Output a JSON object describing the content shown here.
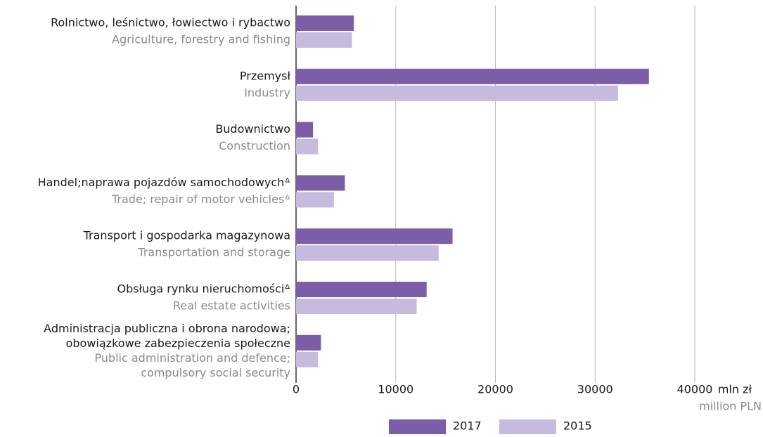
{
  "chart_data": {
    "type": "hbar",
    "categories": [
      {
        "pl": [
          "Rolnictwo, leśnictwo, łowiectwo i rybactwo"
        ],
        "en": [
          "Agriculture, forestry and fishing"
        ]
      },
      {
        "pl": [
          "Przemysł"
        ],
        "en": [
          "Industry"
        ]
      },
      {
        "pl": [
          "Budownictwo"
        ],
        "en": [
          "Construction"
        ]
      },
      {
        "pl": [
          "Handel;naprawa pojazdów samochodowychᐞ"
        ],
        "en": [
          "Trade; repair of motor vehiclesᐞ"
        ]
      },
      {
        "pl": [
          "Transport i gospodarka magazynowa"
        ],
        "en": [
          "Transportation and storage"
        ]
      },
      {
        "pl": [
          "Obsługa rynku nieruchomościᐞ"
        ],
        "en": [
          "Real estate activities"
        ]
      },
      {
        "pl": [
          "Administracja publiczna i obrona narodowa;",
          "obowiązkowe zabezpieczenia społeczne"
        ],
        "en": [
          "Public administration and defence;",
          "compulsory social security"
        ]
      }
    ],
    "series": [
      {
        "name": "2017",
        "color": "#7b5ea7",
        "values": [
          5800,
          35400,
          1700,
          4900,
          15700,
          13100,
          2500
        ]
      },
      {
        "name": "2015",
        "color": "#c6bade",
        "values": [
          5600,
          32300,
          2200,
          3800,
          14300,
          12100,
          2200
        ]
      }
    ],
    "xlim": [
      0,
      40000
    ],
    "xticks": [
      0,
      10000,
      20000,
      30000,
      40000
    ],
    "x_label": "mln zł",
    "x_label_en": "million PLN",
    "grid": true
  }
}
